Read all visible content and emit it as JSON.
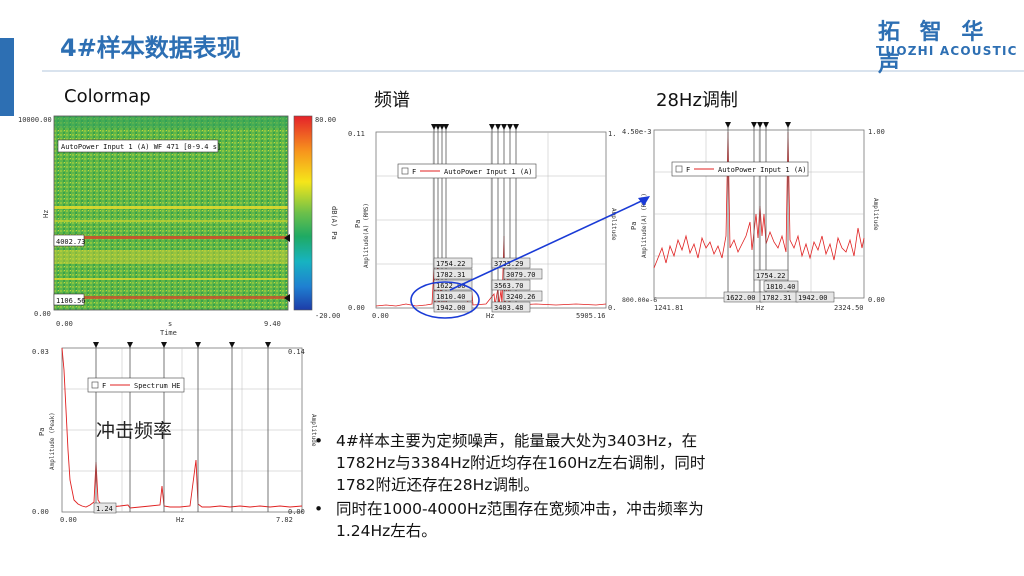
{
  "header": {
    "title": "4#样本数据表现",
    "logo_cn": "拓 智 华 声",
    "logo_en": "TUOZHI ACOUSTIC"
  },
  "sections": {
    "colormap": "Colormap",
    "spectrum": "频谱",
    "modulation": "28Hz调制",
    "impact": "冲击频率"
  },
  "colormap": {
    "legend": "AutoPower Input 1 (A) WF 471 [0-9.4 s]",
    "y_top": "10000.00",
    "y_bottom": "0.00",
    "y_label": "Hz",
    "x_left": "0.00",
    "x_right": "9.40",
    "x_unit": "s",
    "x_label": "Time",
    "cursor_1": "4002.73",
    "cursor_2": "1106.56",
    "scale_top": "80.00",
    "scale_bottom": "-20.00",
    "scale_label": "dB(A) Pa"
  },
  "spectrum": {
    "y_top": "0.11",
    "y_bottom": "0.00",
    "y_label": "Pa",
    "y_label2": "Amplitude(A) (RMS)",
    "y_right_label": "Amplitude",
    "y_right_top": "1.",
    "y_right_bottom": "0.",
    "x_left": "0.00",
    "x_right": "5905.16",
    "x_label": "Hz",
    "legend": "AutoPower Input 1 (A)",
    "legend_f": "F",
    "labels_left": [
      "1754.22",
      "1782.31",
      "1622.00",
      "1810.40",
      "1942.00"
    ],
    "labels_right": [
      "3723.29",
      "3079.70",
      "3563.70",
      "3240.26",
      "3403.48"
    ]
  },
  "modulation": {
    "y_top": "4.50e-3",
    "y_bottom": "800.00e-6",
    "y_label": "Pa",
    "y_label2": "Amplitude(A) (RMS)",
    "y_right_label": "Amplitude",
    "y_right_top": "1.00",
    "y_right_bottom": "0.00",
    "x_left": "1241.81",
    "x_right": "2324.50",
    "x_label": "Hz",
    "legend": "AutoPower Input 1 (A)",
    "legend_f": "F",
    "label_top": "1754.22",
    "label_mid": "1810.40",
    "labels_bottom": [
      "1622.00",
      "1782.31",
      "1942.00"
    ]
  },
  "impact": {
    "y_top": "0.03",
    "y_bottom": "0.00",
    "y_label": "Pa",
    "y_label2": "Amplitude (Peak)",
    "y_right_label": "Amplitude",
    "y_right_top": "0.14",
    "y_right_bottom": "0.00",
    "x_left": "0.00",
    "x_right": "7.82",
    "x_label": "Hz",
    "legend": "Spectrum HE",
    "legend_f": "F",
    "peak_label": "1.24"
  },
  "bullets": [
    "4#样本主要为定频噪声，能量最大处为3403Hz，在1782Hz与3384Hz附近均存在160Hz左右调制，同时1782附近还存在28Hz调制。",
    "同时在1000-4000Hz范围存在宽频冲击，冲击频率为1.24Hz左右。"
  ],
  "bullet_symbol": "•",
  "colors": {
    "accent": "#2d6fb3",
    "trace": "#e02020",
    "arrow": "#1a3bd6"
  }
}
